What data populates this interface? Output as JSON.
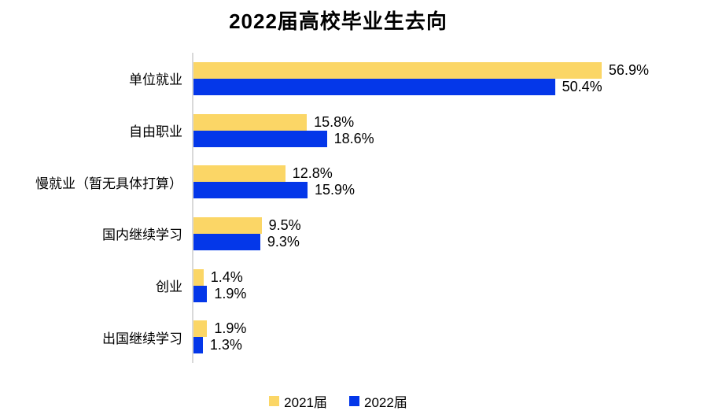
{
  "title": "2022届高校毕业生去向",
  "legend": [
    {
      "label": "2021届",
      "color": "#FBD666"
    },
    {
      "label": "2022届",
      "color": "#0437E9"
    }
  ],
  "colors": {
    "series_2021": "#FBD666",
    "series_2022": "#0437E9",
    "axis_line": "#D9D9D9",
    "text": "#000000",
    "background": "#FFFFFF"
  },
  "chart_data": {
    "type": "bar",
    "orientation": "horizontal",
    "title": "2022届高校毕业生去向",
    "categories": [
      "单位就业",
      "自由职业",
      "慢就业（暂无具体打算）",
      "国内继续学习",
      "创业",
      "出国继续学习"
    ],
    "series": [
      {
        "name": "2021届",
        "color": "#FBD666",
        "values": [
          56.9,
          15.8,
          12.8,
          9.5,
          1.4,
          1.9
        ]
      },
      {
        "name": "2022届",
        "color": "#0437E9",
        "values": [
          50.4,
          18.6,
          15.9,
          9.3,
          1.9,
          1.3
        ]
      }
    ],
    "value_suffix": "%",
    "value_labels": [
      [
        "56.9%",
        "15.8%",
        "12.8%",
        "9.5%",
        "1.4%",
        "1.9%"
      ],
      [
        "50.4%",
        "18.6%",
        "15.9%",
        "9.3%",
        "1.9%",
        "1.3%"
      ]
    ],
    "xlabel": "",
    "ylabel": "",
    "xlim": [
      0,
      62
    ],
    "grid": false,
    "legend_position": "bottom"
  }
}
